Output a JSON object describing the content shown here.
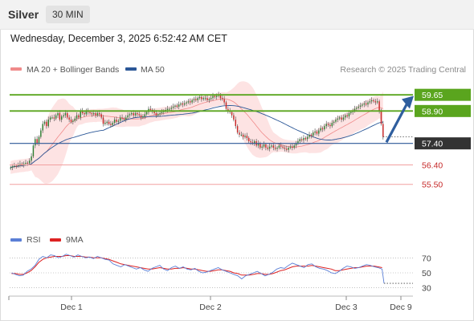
{
  "header": {
    "instrument": "Silver",
    "timeframe": "30 MIN"
  },
  "datetime": "Wednesday, December 3, 2025 6:52:42 AM CET",
  "legend": {
    "bollinger": {
      "label": "MA 20 + Bollinger Bands",
      "color": "#f08a8a"
    },
    "ma50": {
      "label": "MA 50",
      "color": "#2b5797"
    },
    "credit": "Research © 2025 Trading Central"
  },
  "rsi_legend": {
    "rsi": {
      "label": "RSI",
      "color": "#5b7fd6"
    },
    "ma9": {
      "label": "9MA",
      "color": "#dd2222"
    }
  },
  "colors": {
    "up": "#2e7d32",
    "down": "#c62828",
    "resistance": "#5aa51e",
    "support": "#f2a0a0",
    "pivot": "#2b5797"
  },
  "chart_data": {
    "type": "candlestick",
    "x_ticks": [
      "Dec 1",
      "Dec 2",
      "Dec 3",
      "Dec 9"
    ],
    "price_range": [
      54.3,
      60.4
    ],
    "levels": [
      {
        "label": "59.65",
        "value": 59.65,
        "kind": "resistance"
      },
      {
        "label": "58.90",
        "value": 58.9,
        "kind": "resistance"
      },
      {
        "label": "57.40",
        "value": 57.4,
        "kind": "pivot"
      },
      {
        "label": "56.40",
        "value": 56.4,
        "kind": "support"
      },
      {
        "label": "55.50",
        "value": 55.5,
        "kind": "support"
      }
    ],
    "close": [
      56.28,
      56.33,
      56.36,
      56.35,
      56.4,
      56.45,
      56.4,
      56.45,
      56.5,
      56.48,
      56.6,
      56.8,
      57.3,
      57.6,
      57.4,
      57.7,
      58.0,
      58.3,
      58.4,
      58.2,
      58.5,
      58.6,
      58.6,
      58.55,
      58.7,
      58.8,
      58.5,
      58.65,
      58.7,
      58.8,
      58.6,
      58.5,
      58.4,
      58.45,
      58.55,
      58.7,
      58.6,
      58.9,
      58.8,
      58.75,
      58.9,
      58.85,
      58.8,
      58.75,
      58.8,
      58.7,
      58.8,
      58.75,
      58.6,
      58.3,
      58.35,
      58.4,
      58.3,
      58.25,
      58.35,
      58.5,
      58.4,
      58.45,
      58.6,
      58.55,
      58.5,
      58.6,
      58.7,
      58.75,
      58.8,
      58.7,
      58.8,
      58.75,
      58.7,
      58.6,
      58.65,
      58.75,
      58.85,
      59.0,
      58.95,
      58.9,
      58.8,
      58.7,
      58.75,
      58.8,
      58.85,
      58.9,
      58.95,
      59.0,
      59.0,
      59.05,
      59.1,
      59.15,
      59.1,
      59.2,
      59.25,
      59.2,
      59.25,
      59.3,
      59.35,
      59.3,
      59.4,
      59.45,
      59.4,
      59.5,
      59.55,
      59.45,
      59.5,
      59.5,
      59.4,
      59.45,
      59.5,
      59.6,
      59.55,
      59.6,
      59.65,
      59.5,
      59.45,
      59.3,
      59.0,
      58.9,
      58.85,
      58.7,
      58.5,
      58.2,
      57.9,
      57.8,
      57.8,
      57.7,
      57.75,
      57.65,
      57.5,
      57.45,
      57.4,
      57.5,
      57.3,
      57.4,
      57.2,
      57.25,
      57.35,
      57.2,
      57.15,
      57.25,
      57.3,
      57.2,
      57.15,
      57.2,
      57.3,
      57.25,
      57.2,
      57.15,
      57.1,
      57.2,
      57.25,
      57.2,
      57.3,
      57.4,
      57.5,
      57.6,
      57.55,
      57.65,
      57.6,
      57.7,
      57.8,
      57.75,
      57.9,
      57.95,
      57.85,
      58.0,
      58.1,
      58.05,
      58.2,
      58.3,
      58.25,
      58.2,
      58.35,
      58.4,
      58.5,
      58.55,
      58.6,
      58.5,
      58.6,
      58.7,
      58.65,
      58.8,
      58.85,
      58.9,
      59.0,
      59.05,
      59.1,
      59.15,
      59.2,
      59.25,
      59.2,
      59.3,
      59.35,
      59.4,
      59.35,
      59.3,
      59.35,
      58.9,
      58.3,
      57.7
    ],
    "rsi": {
      "y_ticks": [
        70,
        50,
        30
      ],
      "rsi": [
        50,
        48,
        46,
        47,
        52,
        55,
        60,
        68,
        72,
        70,
        74,
        73,
        70,
        72,
        75,
        73,
        71,
        74,
        72,
        70,
        71,
        69,
        72,
        70,
        68,
        67,
        62,
        60,
        58,
        61,
        59,
        57,
        55,
        57,
        54,
        52,
        56,
        58,
        60,
        55,
        53,
        57,
        59,
        56,
        58,
        55,
        54,
        56,
        52,
        50,
        51,
        53,
        55,
        57,
        54,
        52,
        50,
        48,
        46,
        42,
        46,
        48,
        50,
        52,
        49,
        46,
        48,
        51,
        55,
        57,
        56,
        60,
        63,
        61,
        59,
        57,
        61,
        62,
        58,
        56,
        55,
        53,
        50,
        49,
        52,
        56,
        59,
        58,
        56,
        57,
        59,
        61,
        60,
        58,
        57,
        55
      ],
      "ma9": [
        49,
        49,
        48,
        48,
        50,
        53,
        58,
        64,
        68,
        70,
        71,
        72,
        72,
        72,
        73,
        73,
        72,
        72,
        72,
        71,
        71,
        70,
        70,
        70,
        69,
        68,
        66,
        64,
        62,
        61,
        60,
        59,
        58,
        57,
        56,
        55,
        55,
        56,
        57,
        56,
        55,
        55,
        56,
        56,
        57,
        56,
        55,
        55,
        54,
        53,
        52,
        52,
        53,
        54,
        54,
        53,
        52,
        50,
        49,
        47,
        47,
        47,
        48,
        49,
        49,
        48,
        48,
        49,
        51,
        53,
        54,
        56,
        58,
        59,
        59,
        59,
        59,
        60,
        59,
        58,
        57,
        56,
        55,
        53,
        53,
        54,
        55,
        56,
        57,
        57,
        58,
        59,
        59,
        59,
        58,
        57
      ]
    }
  }
}
